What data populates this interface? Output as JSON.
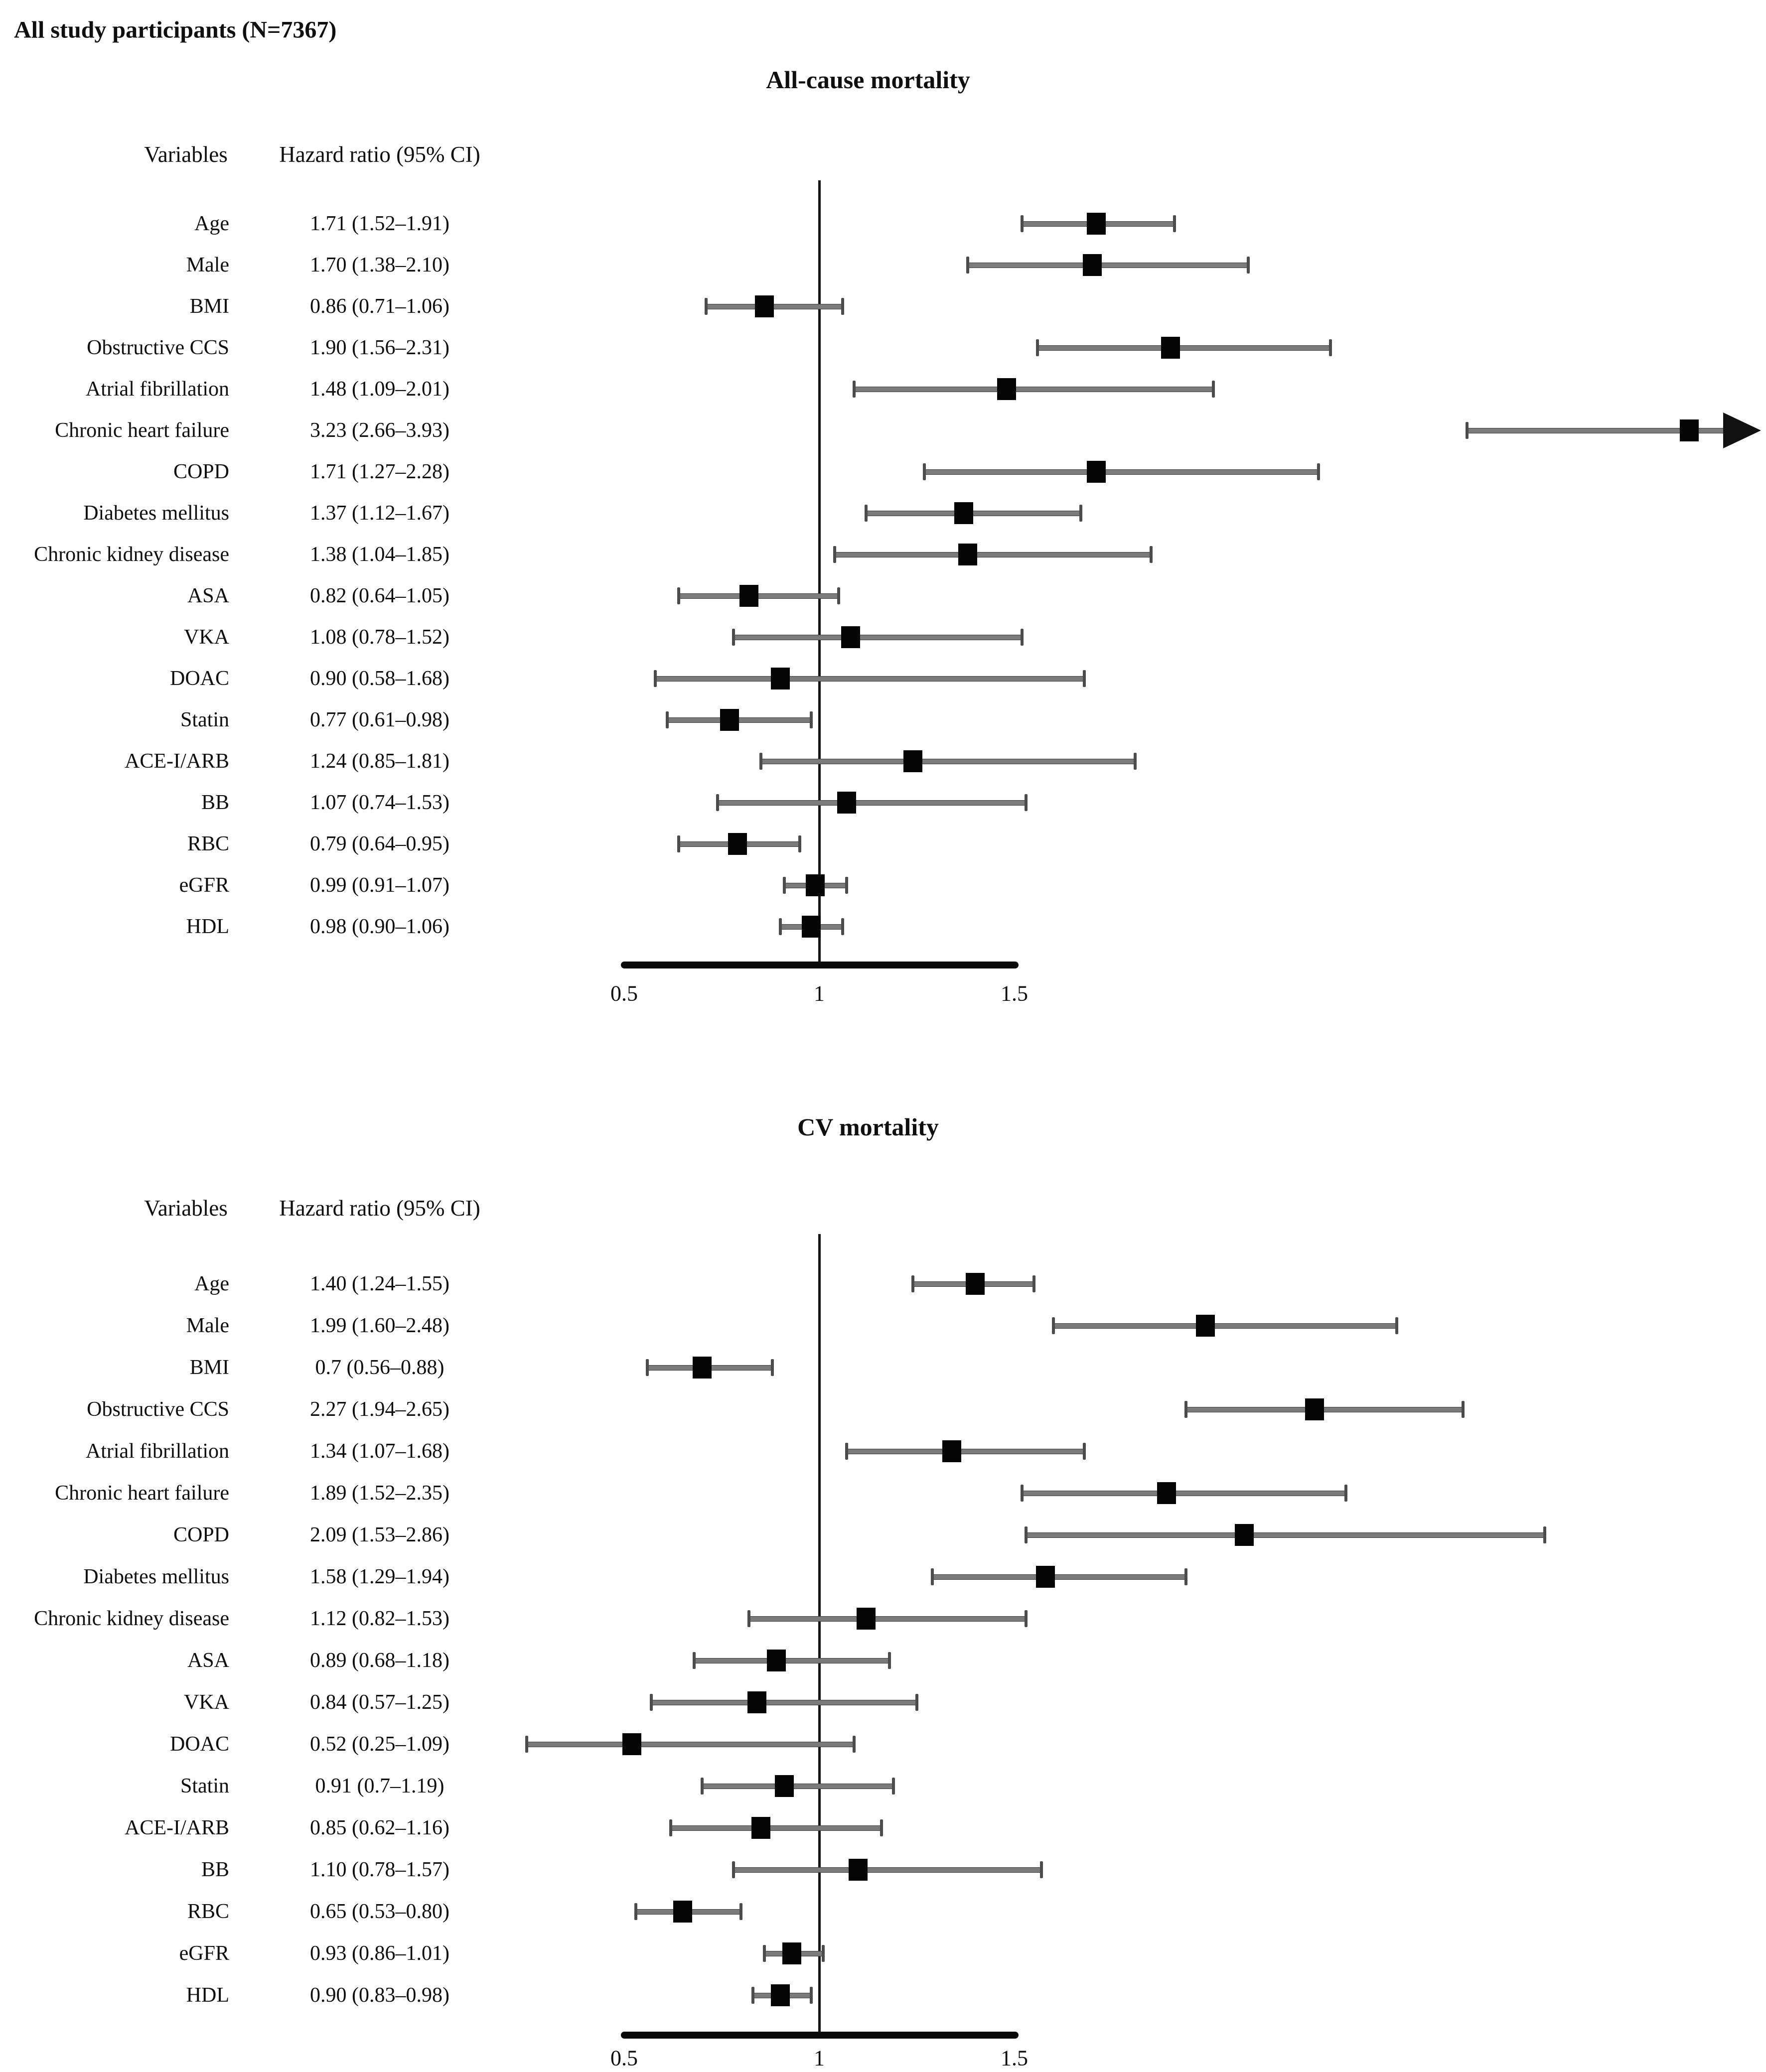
{
  "figure": {
    "title": "All study participants (N=7367)"
  },
  "colors": {
    "marker": "#050505",
    "ci_line": "#7b7b7b",
    "reference_line": "#161616",
    "axis": "#0a0a0a",
    "text": "#0f0f0f",
    "background": "#ffffff"
  },
  "chart_data": [
    {
      "type": "scatter",
      "subtype": "forest-plot",
      "title": "All-cause mortality",
      "columns": [
        "Variables",
        "Hazard ratio (95% CI)"
      ],
      "xlabel": "",
      "ylabel": "",
      "x_ticks": [
        0.5,
        1,
        1.5
      ],
      "x_tick_labels": [
        "0.5",
        "1",
        "1.5"
      ],
      "axis_range_shown": [
        0.5,
        1.5
      ],
      "reference_line_x": 1,
      "grid": false,
      "legend": "none",
      "rows": [
        {
          "label": "Age",
          "hr_text": "1.71 (1.52–1.91)",
          "hr": 1.71,
          "ci_low": 1.52,
          "ci_high": 1.91
        },
        {
          "label": "Male",
          "hr_text": "1.70 (1.38–2.10)",
          "hr": 1.7,
          "ci_low": 1.38,
          "ci_high": 2.1
        },
        {
          "label": "BMI",
          "hr_text": "0.86 (0.71–1.06)",
          "hr": 0.86,
          "ci_low": 0.71,
          "ci_high": 1.06
        },
        {
          "label": "Obstructive CCS",
          "hr_text": "1.90 (1.56–2.31)",
          "hr": 1.9,
          "ci_low": 1.56,
          "ci_high": 2.31
        },
        {
          "label": "Atrial fibrillation",
          "hr_text": "1.48 (1.09–2.01)",
          "hr": 1.48,
          "ci_low": 1.09,
          "ci_high": 2.01
        },
        {
          "label": "Chronic heart failure",
          "hr_text": "3.23 (2.66–3.93)",
          "hr": 3.23,
          "ci_low": 2.66,
          "ci_high": 3.93,
          "ci_high_offscale": true
        },
        {
          "label": "COPD",
          "hr_text": "1.71 (1.27–2.28)",
          "hr": 1.71,
          "ci_low": 1.27,
          "ci_high": 2.28
        },
        {
          "label": "Diabetes mellitus",
          "hr_text": "1.37 (1.12–1.67)",
          "hr": 1.37,
          "ci_low": 1.12,
          "ci_high": 1.67
        },
        {
          "label": "Chronic kidney disease",
          "hr_text": "1.38 (1.04–1.85)",
          "hr": 1.38,
          "ci_low": 1.04,
          "ci_high": 1.85
        },
        {
          "label": "ASA",
          "hr_text": "0.82 (0.64–1.05)",
          "hr": 0.82,
          "ci_low": 0.64,
          "ci_high": 1.05
        },
        {
          "label": "VKA",
          "hr_text": "1.08 (0.78–1.52)",
          "hr": 1.08,
          "ci_low": 0.78,
          "ci_high": 1.52
        },
        {
          "label": "DOAC",
          "hr_text": "0.90 (0.58–1.68)",
          "hr": 0.9,
          "ci_low": 0.58,
          "ci_high": 1.68
        },
        {
          "label": "Statin",
          "hr_text": "0.77 (0.61–0.98)",
          "hr": 0.77,
          "ci_low": 0.61,
          "ci_high": 0.98
        },
        {
          "label": "ACE-I/ARB",
          "hr_text": "1.24 (0.85–1.81)",
          "hr": 1.24,
          "ci_low": 0.85,
          "ci_high": 1.81
        },
        {
          "label": "BB",
          "hr_text": "1.07 (0.74–1.53)",
          "hr": 1.07,
          "ci_low": 0.74,
          "ci_high": 1.53
        },
        {
          "label": "RBC",
          "hr_text": "0.79 (0.64–0.95)",
          "hr": 0.79,
          "ci_low": 0.64,
          "ci_high": 0.95
        },
        {
          "label": "eGFR",
          "hr_text": "0.99 (0.91–1.07)",
          "hr": 0.99,
          "ci_low": 0.91,
          "ci_high": 1.07
        },
        {
          "label": "HDL",
          "hr_text": "0.98 (0.90–1.06)",
          "hr": 0.98,
          "ci_low": 0.9,
          "ci_high": 1.06
        }
      ]
    },
    {
      "type": "scatter",
      "subtype": "forest-plot",
      "title": "CV mortality",
      "columns": [
        "Variables",
        "Hazard ratio (95% CI)"
      ],
      "xlabel": "",
      "ylabel": "",
      "x_ticks": [
        0.5,
        1,
        1.5
      ],
      "x_tick_labels": [
        "0.5",
        "1",
        "1.5"
      ],
      "axis_range_shown": [
        0.5,
        1.5
      ],
      "reference_line_x": 1,
      "grid": false,
      "legend": "none",
      "rows": [
        {
          "label": "Age",
          "hr_text": "1.40 (1.24–1.55)",
          "hr": 1.4,
          "ci_low": 1.24,
          "ci_high": 1.55
        },
        {
          "label": "Male",
          "hr_text": "1.99 (1.60–2.48)",
          "hr": 1.99,
          "ci_low": 1.6,
          "ci_high": 2.48
        },
        {
          "label": "BMI",
          "hr_text": "0.7 (0.56–0.88)",
          "hr": 0.7,
          "ci_low": 0.56,
          "ci_high": 0.88
        },
        {
          "label": "Obstructive CCS",
          "hr_text": "2.27 (1.94–2.65)",
          "hr": 2.27,
          "ci_low": 1.94,
          "ci_high": 2.65
        },
        {
          "label": "Atrial fibrillation",
          "hr_text": "1.34 (1.07–1.68)",
          "hr": 1.34,
          "ci_low": 1.07,
          "ci_high": 1.68
        },
        {
          "label": "Chronic heart failure",
          "hr_text": "1.89 (1.52–2.35)",
          "hr": 1.89,
          "ci_low": 1.52,
          "ci_high": 2.35
        },
        {
          "label": "COPD",
          "hr_text": "2.09 (1.53–2.86)",
          "hr": 2.09,
          "ci_low": 1.53,
          "ci_high": 2.86
        },
        {
          "label": "Diabetes mellitus",
          "hr_text": "1.58 (1.29–1.94)",
          "hr": 1.58,
          "ci_low": 1.29,
          "ci_high": 1.94
        },
        {
          "label": "Chronic kidney disease",
          "hr_text": "1.12 (0.82–1.53)",
          "hr": 1.12,
          "ci_low": 0.82,
          "ci_high": 1.53
        },
        {
          "label": "ASA",
          "hr_text": "0.89 (0.68–1.18)",
          "hr": 0.89,
          "ci_low": 0.68,
          "ci_high": 1.18
        },
        {
          "label": "VKA",
          "hr_text": "0.84 (0.57–1.25)",
          "hr": 0.84,
          "ci_low": 0.57,
          "ci_high": 1.25
        },
        {
          "label": "DOAC",
          "hr_text": "0.52 (0.25–1.09)",
          "hr": 0.52,
          "ci_low": 0.25,
          "ci_high": 1.09
        },
        {
          "label": "Statin",
          "hr_text": "0.91 (0.7–1.19)",
          "hr": 0.91,
          "ci_low": 0.7,
          "ci_high": 1.19
        },
        {
          "label": "ACE-I/ARB",
          "hr_text": "0.85 (0.62–1.16)",
          "hr": 0.85,
          "ci_low": 0.62,
          "ci_high": 1.16
        },
        {
          "label": "BB",
          "hr_text": "1.10 (0.78–1.57)",
          "hr": 1.1,
          "ci_low": 0.78,
          "ci_high": 1.57
        },
        {
          "label": "RBC",
          "hr_text": "0.65 (0.53–0.80)",
          "hr": 0.65,
          "ci_low": 0.53,
          "ci_high": 0.8
        },
        {
          "label": "eGFR",
          "hr_text": "0.93 (0.86–1.01)",
          "hr": 0.93,
          "ci_low": 0.86,
          "ci_high": 1.01
        },
        {
          "label": "HDL",
          "hr_text": "0.90 (0.83–0.98)",
          "hr": 0.9,
          "ci_low": 0.83,
          "ci_high": 0.98
        }
      ]
    }
  ]
}
